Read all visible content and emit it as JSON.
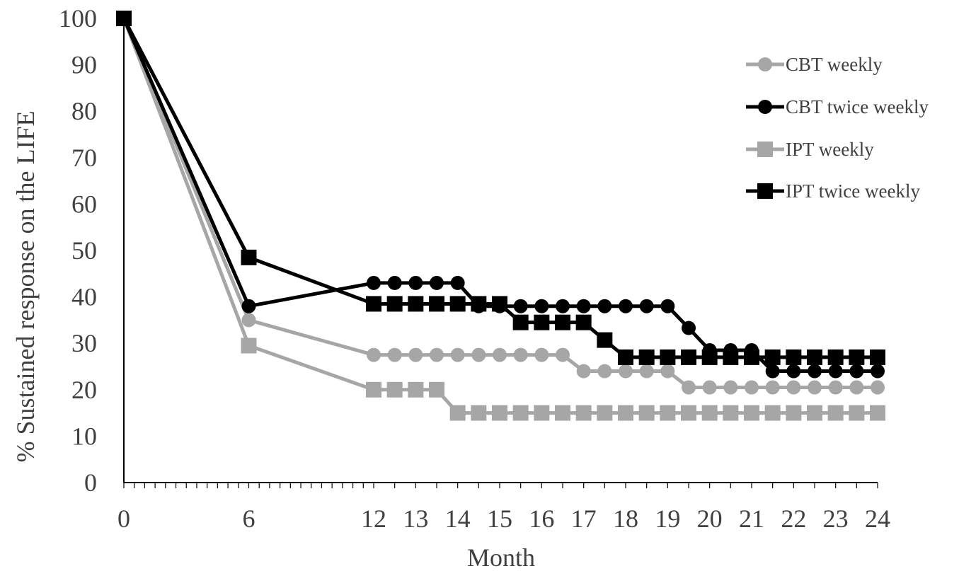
{
  "chart_data": {
    "type": "line",
    "title": "",
    "xlabel": "Month",
    "ylabel": "% Sustained response on the LIFE",
    "ylim": [
      0,
      100
    ],
    "y_ticks": [
      "0",
      "10",
      "20",
      "30",
      "40",
      "50",
      "60",
      "70",
      "80",
      "90",
      "100"
    ],
    "x_ticks": [
      "0",
      "6",
      "12",
      "13",
      "14",
      "15",
      "16",
      "17",
      "18",
      "19",
      "20",
      "21",
      "22",
      "23",
      "24"
    ],
    "x_minor_ticks_per_month_before_12": 2,
    "grid": false,
    "legend_position": "top-right",
    "series": [
      {
        "name": "CBT weekly",
        "color": "#a6a6a6",
        "marker": "circle",
        "x": [
          0,
          6,
          12,
          12.5,
          13,
          13.5,
          14,
          14.5,
          15,
          15.5,
          16,
          16.5,
          17,
          17.5,
          18,
          18.5,
          19,
          19.5,
          20,
          20.5,
          21,
          21.5,
          22,
          22.5,
          23,
          23.5,
          24
        ],
        "values": [
          100,
          35,
          27.5,
          27.5,
          27.5,
          27.5,
          27.5,
          27.5,
          27.5,
          27.5,
          27.5,
          27.5,
          24,
          24,
          24,
          24,
          24,
          20.5,
          20.5,
          20.5,
          20.5,
          20.5,
          20.5,
          20.5,
          20.5,
          20.5,
          20.5
        ]
      },
      {
        "name": "CBT twice weekly",
        "color": "#000000",
        "marker": "circle",
        "x": [
          0,
          6,
          12,
          12.5,
          13,
          13.5,
          14,
          14.5,
          15,
          15.5,
          16,
          16.5,
          17,
          17.5,
          18,
          18.5,
          19,
          19.5,
          20,
          20.5,
          21,
          21.5,
          22,
          22.5,
          23,
          23.5,
          24
        ],
        "values": [
          100,
          38,
          43,
          43,
          43,
          43,
          43,
          38,
          38,
          38,
          38,
          38,
          38,
          38,
          38,
          38,
          38,
          33.3,
          28.5,
          28.5,
          28.5,
          24,
          24,
          24,
          24,
          24,
          24
        ]
      },
      {
        "name": "IPT weekly",
        "color": "#a6a6a6",
        "marker": "square",
        "x": [
          0,
          6,
          12,
          12.5,
          13,
          13.5,
          14,
          14.5,
          15,
          15.5,
          16,
          16.5,
          17,
          17.5,
          18,
          18.5,
          19,
          19.5,
          20,
          20.5,
          21,
          21.5,
          22,
          22.5,
          23,
          23.5,
          24
        ],
        "values": [
          100,
          29.5,
          20,
          20,
          20,
          20,
          15,
          15,
          15,
          15,
          15,
          15,
          15,
          15,
          15,
          15,
          15,
          15,
          15,
          15,
          15,
          15,
          15,
          15,
          15,
          15,
          15
        ]
      },
      {
        "name": "IPT twice weekly",
        "color": "#000000",
        "marker": "square",
        "x": [
          0,
          6,
          12,
          12.5,
          13,
          13.5,
          14,
          14.5,
          15,
          15.5,
          16,
          16.5,
          17,
          17.5,
          18,
          18.5,
          19,
          19.5,
          20,
          20.5,
          21,
          21.5,
          22,
          22.5,
          23,
          23.5,
          24
        ],
        "values": [
          100,
          48.5,
          38.5,
          38.5,
          38.5,
          38.5,
          38.5,
          38.5,
          38.5,
          34.5,
          34.5,
          34.5,
          34.5,
          30.7,
          27,
          27,
          27,
          27,
          27,
          27,
          27,
          27,
          27,
          27,
          27,
          27,
          27
        ]
      }
    ]
  }
}
